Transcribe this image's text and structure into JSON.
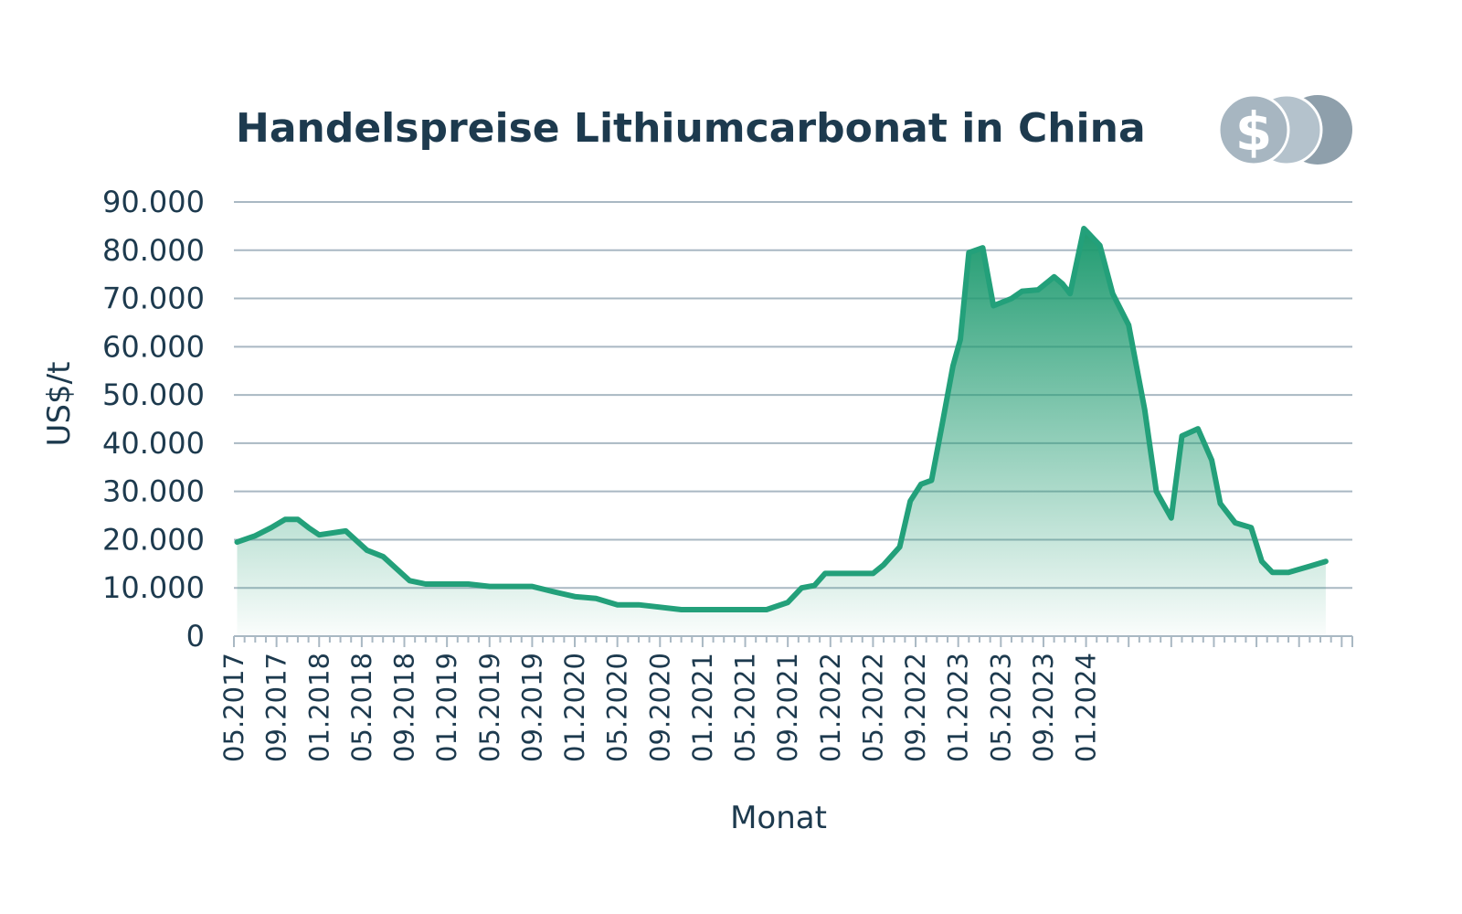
{
  "chart_data": {
    "type": "area",
    "title": "Handelspreise Lithiumcarbonat in China",
    "xlabel": "Monat",
    "ylabel": "US$/t",
    "ylim": [
      0,
      90000
    ],
    "yticks": [
      "0",
      "10.000",
      "20.000",
      "30.000",
      "40.000",
      "50.000",
      "60.000",
      "70.000",
      "80.000",
      "90.000"
    ],
    "xticks": [
      "05.2017",
      "09.2017",
      "01.2018",
      "05.2018",
      "09.2018",
      "01.2019",
      "05.2019",
      "09.2019",
      "01.2020",
      "05.2020",
      "09.2020",
      "01.2021",
      "05.2021",
      "09.2021",
      "01.2022",
      "05.2022",
      "09.2022",
      "01.2023",
      "05.2023",
      "09.2023",
      "01.2024"
    ],
    "grid": true,
    "colors": {
      "line": "#23a07a",
      "fill_top": "#1f9b70",
      "grid": "#a9b8c3",
      "text": "#1d3a4e"
    },
    "series": [
      {
        "values": [
          [
            0.3,
            19500
          ],
          [
            2.0,
            20800
          ],
          [
            3.5,
            22500
          ],
          [
            4.8,
            24200
          ],
          [
            6.0,
            24200
          ],
          [
            7.0,
            22500
          ],
          [
            8.0,
            21000
          ],
          [
            10.5,
            21800
          ],
          [
            12.5,
            17800
          ],
          [
            14.0,
            16500
          ],
          [
            16.5,
            11500
          ],
          [
            18.0,
            10800
          ],
          [
            20.0,
            10800
          ],
          [
            22.0,
            10800
          ],
          [
            24.0,
            10300
          ],
          [
            26.0,
            10300
          ],
          [
            28.0,
            10300
          ],
          [
            30.0,
            9200
          ],
          [
            32.0,
            8200
          ],
          [
            34.0,
            7800
          ],
          [
            36.0,
            6500
          ],
          [
            38.0,
            6500
          ],
          [
            40.0,
            6000
          ],
          [
            42.0,
            5500
          ],
          [
            44.0,
            5500
          ],
          [
            46.0,
            5500
          ],
          [
            48.0,
            5500
          ],
          [
            50.0,
            5500
          ],
          [
            52.0,
            7000
          ],
          [
            53.3,
            10000
          ],
          [
            54.5,
            10500
          ],
          [
            55.5,
            13000
          ],
          [
            57.0,
            13000
          ],
          [
            58.5,
            13000
          ],
          [
            60.0,
            13000
          ],
          [
            61.0,
            14800
          ],
          [
            62.5,
            18500
          ],
          [
            63.5,
            28000
          ],
          [
            64.5,
            31500
          ],
          [
            65.5,
            32300
          ],
          [
            66.5,
            44000
          ],
          [
            67.5,
            56000
          ],
          [
            68.2,
            61500
          ],
          [
            69.0,
            79500
          ],
          [
            70.3,
            80500
          ],
          [
            71.3,
            68500
          ],
          [
            73.0,
            70000
          ],
          [
            74.0,
            71500
          ],
          [
            75.5,
            71800
          ],
          [
            77.0,
            74500
          ],
          [
            77.8,
            73000
          ],
          [
            78.5,
            71000
          ],
          [
            79.8,
            84500
          ],
          [
            81.3,
            81000
          ],
          [
            82.5,
            71000
          ],
          [
            84.0,
            64500
          ],
          [
            85.5,
            47000
          ],
          [
            86.6,
            30000
          ],
          [
            88.0,
            24500
          ],
          [
            89.0,
            41500
          ],
          [
            90.5,
            43000
          ],
          [
            91.8,
            36500
          ],
          [
            92.6,
            27500
          ],
          [
            94.0,
            23500
          ],
          [
            95.5,
            22500
          ],
          [
            96.5,
            15500
          ],
          [
            97.5,
            13200
          ],
          [
            99.0,
            13200
          ],
          [
            101.0,
            14500
          ],
          [
            102.5,
            15500
          ]
        ]
      }
    ]
  },
  "logo": {
    "icon": "dollar-coins-icon",
    "symbol": "$"
  }
}
